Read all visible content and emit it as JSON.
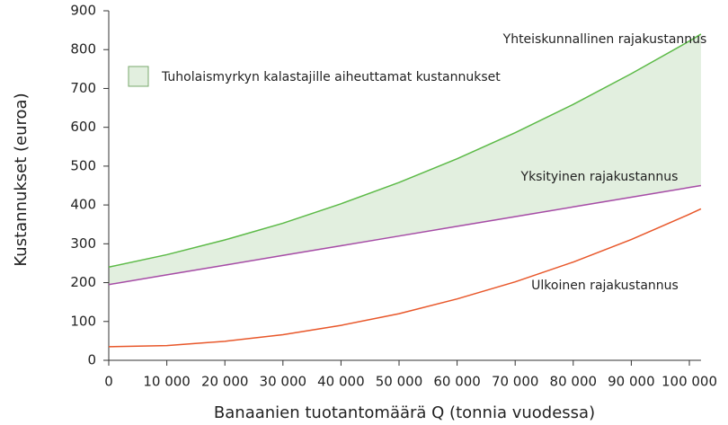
{
  "chart_data": {
    "type": "line",
    "x_label": "Banaanien tuotantomäärä Q (tonnia vuodessa)",
    "y_label": "Kustannukset (euroa)",
    "x": [
      0,
      10000,
      20000,
      30000,
      40000,
      50000,
      60000,
      70000,
      80000,
      90000,
      100000,
      102000
    ],
    "series": [
      {
        "name": "Yhteiskunnallinen rajakustannus",
        "color": "#5cba47",
        "values": [
          240,
          272,
          310,
          353,
          403,
          458,
          519,
          586,
          659,
          738,
          822,
          840
        ]
      },
      {
        "name": "Yksityinen rajakustannus",
        "color": "#a64ca6",
        "values": [
          195,
          220,
          245,
          270,
          295,
          320,
          345,
          370,
          395,
          420,
          445,
          450
        ]
      },
      {
        "name": "Ulkoinen rajakustannus",
        "color": "#e8572a",
        "values": [
          35,
          38,
          49,
          66,
          90,
          120,
          158,
          202,
          253,
          311,
          376,
          390
        ]
      }
    ],
    "shaded_area": {
      "name": "Tuholaismyrkyn kalastajille aiheuttamat kustannukset",
      "color": "#e2efdf",
      "border": "#7aa86c"
    },
    "xlim": [
      0,
      102000
    ],
    "ylim": [
      0,
      900
    ],
    "xticks": [
      0,
      {
        "value": 10000,
        "label": "10 000"
      },
      {
        "value": 20000,
        "label": "20 000"
      },
      {
        "value": 30000,
        "label": "30 000"
      },
      {
        "value": 40000,
        "label": "40 000"
      },
      {
        "value": 50000,
        "label": "50 000"
      },
      {
        "value": 60000,
        "label": "60 000"
      },
      {
        "value": 70000,
        "label": "70 000"
      },
      {
        "value": 80000,
        "label": "80 000"
      },
      {
        "value": 90000,
        "label": "90 000"
      },
      {
        "value": 100000,
        "label": "100 000"
      }
    ],
    "yticks": [
      0,
      100,
      200,
      300,
      400,
      500,
      600,
      700,
      800,
      900
    ]
  }
}
